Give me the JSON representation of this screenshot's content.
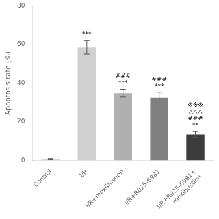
{
  "chart_data": {
    "type": "bar",
    "categories": [
      "Control",
      "I/R",
      "I/R+moxibustion",
      "I/R+R025-6981",
      "I/R+R025-6981+\nmoxibustion"
    ],
    "values": [
      0.7,
      58.5,
      34.8,
      32.5,
      13.5
    ],
    "errors": [
      0.3,
      3.5,
      2.0,
      2.8,
      1.5
    ],
    "colors": [
      "#d4d4d4",
      "#d0d0d0",
      "#b0b0b0",
      "#808080",
      "#3c3c3c"
    ],
    "ylabel": "Apoptosis rate (%)",
    "ylim": [
      0,
      80
    ],
    "yticks": [
      0,
      20,
      40,
      60,
      80
    ],
    "grid": false,
    "annotations": [
      {
        "category": "I/R",
        "lines": [
          "***"
        ]
      },
      {
        "category": "I/R+moxibustion",
        "lines": [
          "###",
          "***"
        ]
      },
      {
        "category": "I/R+R025-6981",
        "lines": [
          "###",
          "***"
        ]
      },
      {
        "category": "I/R+R025-6981+\nmoxibustion",
        "lines": [
          "※※※",
          "△△△",
          "###",
          "**"
        ]
      }
    ]
  }
}
